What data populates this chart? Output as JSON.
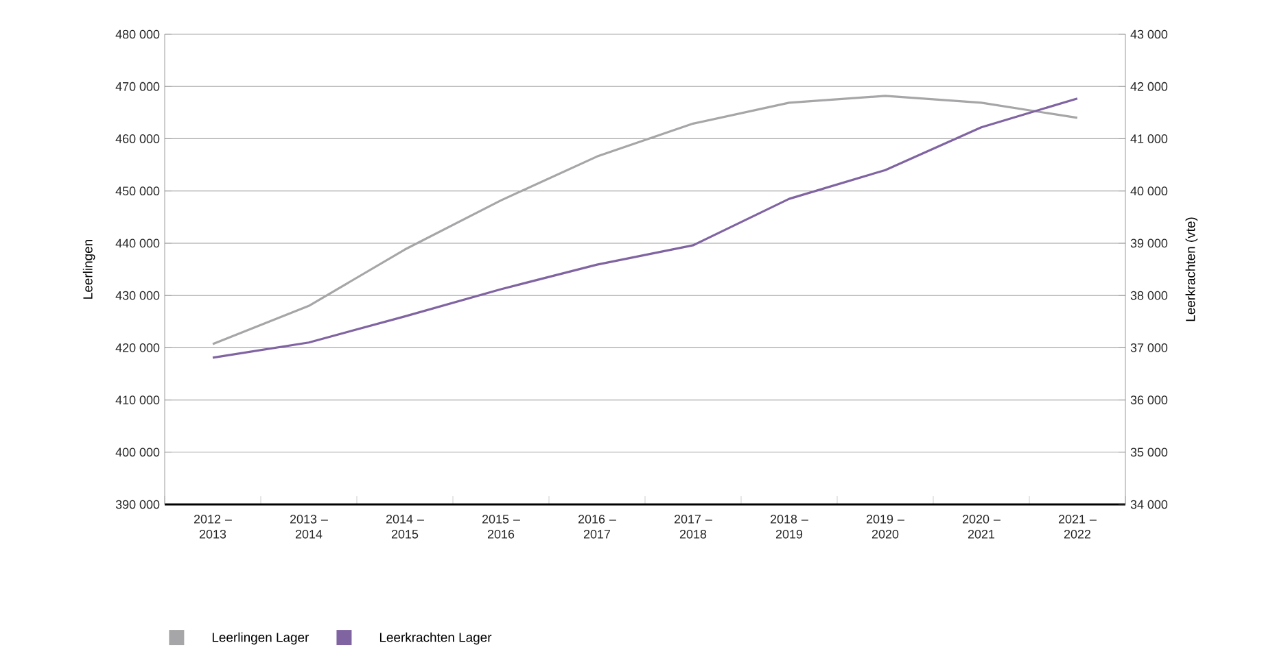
{
  "chart_data": {
    "type": "line",
    "categories": [
      "2012 – 2013",
      "2013 – 2014",
      "2014 – 2015",
      "2015 – 2016",
      "2016 – 2017",
      "2017 – 2018",
      "2018 – 2019",
      "2019 – 2020",
      "2020 – 2021",
      "2021 – 2022"
    ],
    "ylabel": "Leerlingen",
    "y2label": "Leerkrachten (vte)",
    "ylim": [
      390000,
      480000
    ],
    "yticks": [
      {
        "value": 390000,
        "label": "390 000"
      },
      {
        "value": 400000,
        "label": "400 000"
      },
      {
        "value": 410000,
        "label": "410 000"
      },
      {
        "value": 420000,
        "label": "420 000"
      },
      {
        "value": 430000,
        "label": "430 000"
      },
      {
        "value": 440000,
        "label": "440 000"
      },
      {
        "value": 450000,
        "label": "450 000"
      },
      {
        "value": 460000,
        "label": "460 000"
      },
      {
        "value": 470000,
        "label": "470 000"
      },
      {
        "value": 480000,
        "label": "480 000"
      }
    ],
    "y2lim": [
      34000,
      43000
    ],
    "y2ticks": [
      {
        "value": 34000,
        "label": "34 000"
      },
      {
        "value": 35000,
        "label": "35 000"
      },
      {
        "value": 36000,
        "label": "36 000"
      },
      {
        "value": 37000,
        "label": "37 000"
      },
      {
        "value": 38000,
        "label": "38 000"
      },
      {
        "value": 39000,
        "label": "39 000"
      },
      {
        "value": 40000,
        "label": "40 000"
      },
      {
        "value": 41000,
        "label": "41 000"
      },
      {
        "value": 42000,
        "label": "42 000"
      },
      {
        "value": 43000,
        "label": "43 000"
      }
    ],
    "grid": "y",
    "legend": "bottom left",
    "series": [
      {
        "name": "Leerlingen Lager",
        "color": "#a6a6a8",
        "values": [
          420700,
          428000,
          438800,
          448200,
          456600,
          462900,
          466900,
          468200,
          466900,
          464000
        ]
      },
      {
        "name": "Leerkrachten Lager",
        "color": "#8064a2",
        "axis": "y2",
        "values": [
          36810,
          37100,
          37600,
          38120,
          38590,
          38960,
          39850,
          40400,
          41220,
          41770
        ]
      }
    ]
  }
}
